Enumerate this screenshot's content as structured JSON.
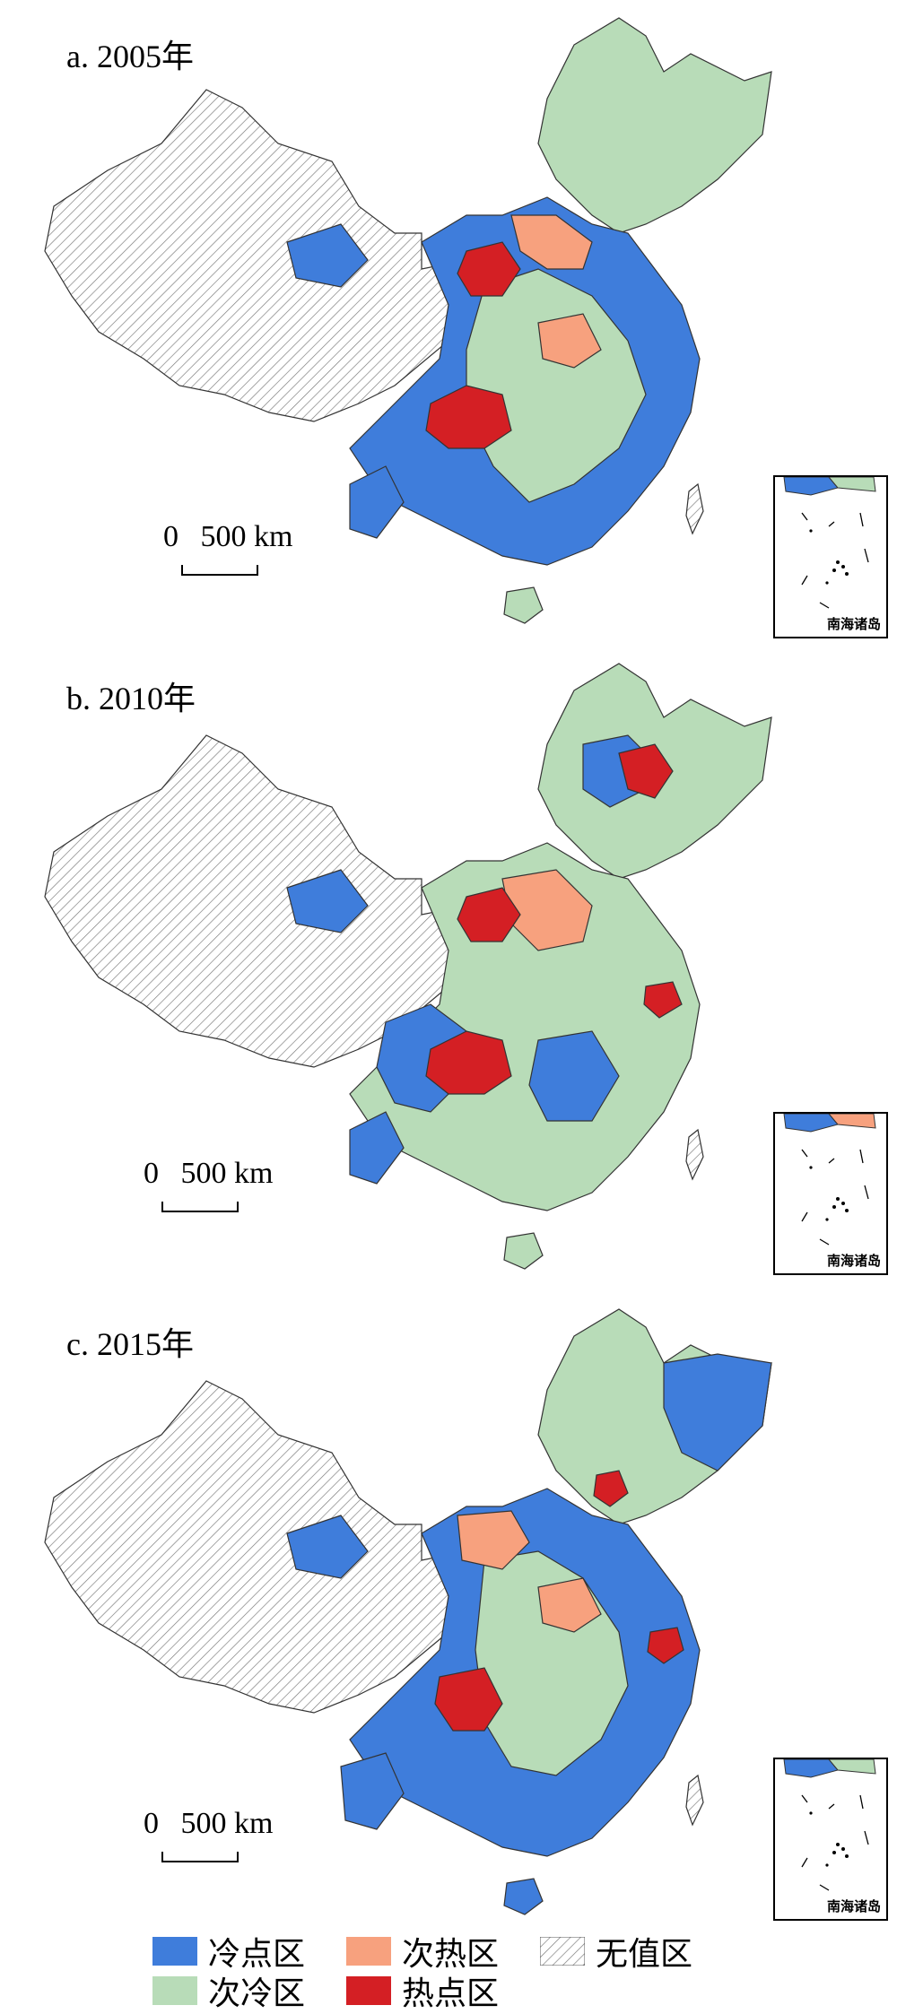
{
  "panels": [
    {
      "title": "a. 2005年",
      "scale": {
        "zero": "0",
        "value": "500 km"
      },
      "inset_label": "南海诸岛"
    },
    {
      "title": "b. 2010年",
      "scale": {
        "zero": "0",
        "value": "500 km"
      },
      "inset_label": "南海诸岛"
    },
    {
      "title": "c. 2015年",
      "scale": {
        "zero": "0",
        "value": "500 km"
      },
      "inset_label": "南海诸岛"
    }
  ],
  "legend": [
    {
      "label": "冷点区",
      "color": "#3f7ddb"
    },
    {
      "label": "次热区",
      "color": "#f7a17e"
    },
    {
      "label": "无值区",
      "color": "hatched"
    },
    {
      "label": "次冷区",
      "color": "#b8dcb8"
    },
    {
      "label": "热点区",
      "color": "#d41f24"
    }
  ],
  "colors": {
    "cold": "#3f7ddb",
    "sub_cold": "#b8dcb8",
    "sub_hot": "#f7a17e",
    "hot": "#d41f24",
    "no_value": "hatched",
    "border": "#333333"
  }
}
